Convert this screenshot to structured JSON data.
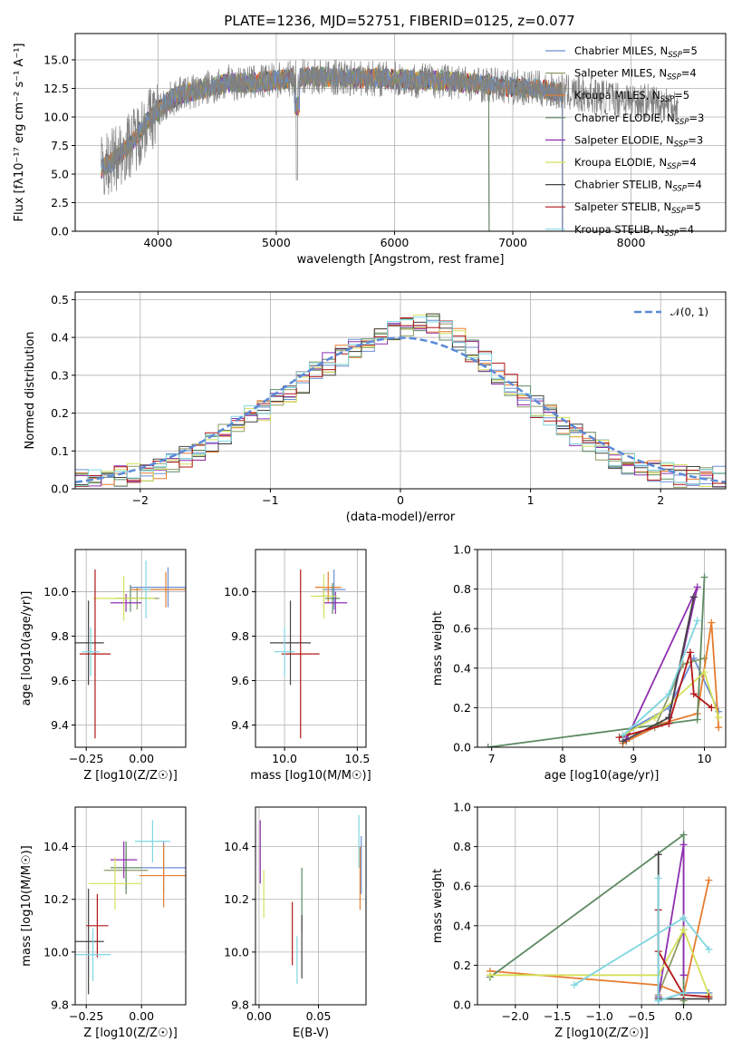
{
  "figure_title": "PLATE=1236, MJD=52751, FIBERID=0125, z=0.077",
  "colors": {
    "Chabrier MILES, N_SSP=5": "#6b8fd6",
    "Salpeter MILES, N_SSP=4": "#8e9b66",
    "Kroupa MILES, N_SSP=5": "#e67c2e",
    "Chabrier ELODIE, N_SSP=3": "#5e8a64",
    "Salpeter ELODIE, N_SSP=3": "#8f2fb0",
    "Kroupa ELODIE, N_SSP=4": "#d4e05a",
    "Chabrier STELIB, N_SSP=4": "#444444",
    "Salpeter STELIB, N_SSP=5": "#b31717",
    "Kroupa STELIB, N_SSP=4": "#7ed6e0"
  },
  "chart_data": [
    {
      "id": "spectrum",
      "type": "line",
      "title": "PLATE=1236, MJD=52751, FIBERID=0125, z=0.077",
      "xlabel": "wavelength [Angstrom, rest frame]",
      "ylabel": "Flux [fλ10⁻¹⁷ erg cm⁻² s⁻¹ A⁻¹]",
      "xlim": [
        3300,
        8800
      ],
      "ylim": [
        0,
        17.3
      ],
      "xticks": [
        4000,
        5000,
        6000,
        7000,
        8000
      ],
      "yticks": [
        0.0,
        2.5,
        5.0,
        7.5,
        10.0,
        12.5,
        15.0
      ],
      "ytick_labels": [
        "0.0",
        "2.5",
        "5.0",
        "7.5",
        "10.0",
        "12.5",
        "15.0"
      ],
      "legend_position": "right",
      "legend": [
        {
          "text": "Chabrier MILES, N",
          "sub": "SSP",
          "tail": "=5",
          "color": "#6b8fd6"
        },
        {
          "text": "Salpeter MILES, N",
          "sub": "SSP",
          "tail": "=4",
          "color": "#8e9b66"
        },
        {
          "text": "Kroupa MILES, N",
          "sub": "SSP",
          "tail": "=5",
          "color": "#e67c2e"
        },
        {
          "text": "Chabrier ELODIE, N",
          "sub": "SSP",
          "tail": "=3",
          "color": "#5e8a64"
        },
        {
          "text": "Salpeter ELODIE, N",
          "sub": "SSP",
          "tail": "=3",
          "color": "#8f2fb0"
        },
        {
          "text": "Kroupa ELODIE, N",
          "sub": "SSP",
          "tail": "=4",
          "color": "#d4e05a"
        },
        {
          "text": "Chabrier STELIB, N",
          "sub": "SSP",
          "tail": "=4",
          "color": "#444444"
        },
        {
          "text": "Salpeter STELIB, N",
          "sub": "SSP",
          "tail": "=5",
          "color": "#b31717"
        },
        {
          "text": "Kroupa STELIB, N",
          "sub": "SSP",
          "tail": "=4",
          "color": "#7ed6e0"
        }
      ],
      "data_envelope": {
        "x": [
          3520,
          3600,
          3700,
          3800,
          3900,
          4000,
          4100,
          4200,
          4400,
          4600,
          4800,
          5000,
          5200,
          5400,
          5600,
          5800,
          6000,
          6200,
          6400,
          6600,
          6800,
          7000,
          7200,
          7400,
          7600,
          7800,
          8000,
          8200,
          8400
        ],
        "y": [
          5.5,
          6.0,
          7.0,
          8.0,
          9.5,
          10.5,
          11.5,
          12.0,
          12.5,
          13.0,
          13.0,
          13.2,
          13.5,
          13.5,
          13.4,
          13.4,
          13.3,
          13.2,
          13.2,
          13.0,
          12.8,
          12.6,
          12.5,
          12.2,
          11.9,
          11.7,
          11.5,
          11.3,
          11.0
        ]
      },
      "model_cutoffs": {
        "Kroupa ELODIE, N_SSP=4": [
          3900,
          6800
        ],
        "Chabrier ELODIE, N_SSP=3": [
          3520,
          6800
        ],
        "Salpeter ELODIE, N_SSP=3": [
          3520,
          6800
        ],
        "Chabrier STELIB, N_SSP=4": [
          3520,
          7420
        ],
        "Salpeter STELIB, N_SSP=5": [
          3520,
          7420
        ],
        "Kroupa STELIB, N_SSP=4": [
          3520,
          7420
        ]
      }
    },
    {
      "id": "residuals",
      "type": "line",
      "xlabel": "(data-model)/error",
      "ylabel": "Normed distribution",
      "xlim": [
        -2.5,
        2.5
      ],
      "ylim": [
        0,
        0.52
      ],
      "xticks": [
        -2,
        -1,
        0,
        1,
        2
      ],
      "xtick_labels": [
        "−2",
        "−1",
        "0",
        "1",
        "2"
      ],
      "yticks": [
        0.0,
        0.1,
        0.2,
        0.3,
        0.4,
        0.5
      ],
      "legend": "𝒩(0, 1)",
      "legend_position": "top-right",
      "bin_width": 0.1,
      "histogram_profile": [
        0.03,
        0.04,
        0.06,
        0.09,
        0.13,
        0.18,
        0.22,
        0.27,
        0.32,
        0.36,
        0.39,
        0.42,
        0.44,
        0.41,
        0.35,
        0.29,
        0.23,
        0.18,
        0.13,
        0.09,
        0.06,
        0.045,
        0.03
      ]
    },
    {
      "id": "age-vs-Z",
      "type": "scatter",
      "xlabel": "Z [log10(Z/Z☉)]",
      "ylabel": "age [log10(age/yr)]",
      "xlim": [
        -0.3,
        0.2
      ],
      "ylim": [
        9.3,
        10.19
      ],
      "xticks": [
        -0.25,
        0.0
      ],
      "xtick_labels": [
        "−0.25",
        "0.00"
      ],
      "yticks": [
        9.4,
        9.6,
        9.8,
        10.0
      ],
      "points": [
        {
          "series": "Chabrier MILES, N_SSP=5",
          "x": 0.12,
          "y": 10.02,
          "xerr": 0.17,
          "yerr": 0.09
        },
        {
          "series": "Salpeter MILES, N_SSP=4",
          "x": -0.02,
          "y": 9.97,
          "xerr": 0.1,
          "yerr": 0.05
        },
        {
          "series": "Kroupa MILES, N_SSP=5",
          "x": 0.11,
          "y": 10.01,
          "xerr": 0.16,
          "yerr": 0.08
        },
        {
          "series": "Chabrier ELODIE, N_SSP=3",
          "x": -0.05,
          "y": 9.97,
          "xerr": 0.06,
          "yerr": 0.06
        },
        {
          "series": "Salpeter ELODIE, N_SSP=3",
          "x": -0.07,
          "y": 9.95,
          "xerr": 0.07,
          "yerr": 0.04
        },
        {
          "series": "Kroupa ELODIE, N_SSP=4",
          "x": -0.08,
          "y": 9.97,
          "xerr": 0.14,
          "yerr": 0.1
        },
        {
          "series": "Chabrier STELIB, N_SSP=4",
          "x": -0.24,
          "y": 9.77,
          "xerr": 0.07,
          "yerr": 0.19
        },
        {
          "series": "Salpeter STELIB, N_SSP=5",
          "x": -0.21,
          "y": 9.72,
          "xerr": 0.07,
          "yerr": 0.38
        },
        {
          "series": "Kroupa STELIB, N_SSP=4",
          "x": -0.23,
          "y": 9.73,
          "xerr": 0.04,
          "yerr": 0.11
        },
        {
          "series": "Kroupa STELIB, N_SSP=4",
          "x": 0.02,
          "y": 10.01,
          "xerr": 0.02,
          "yerr": 0.13
        }
      ]
    },
    {
      "id": "age-vs-mass",
      "type": "scatter",
      "xlabel": "mass [log10(M/M☉)]",
      "ylabel": "",
      "xlim": [
        9.8,
        10.56
      ],
      "ylim": [
        9.3,
        10.19
      ],
      "xticks": [
        10.0,
        10.5
      ],
      "xtick_labels": [
        "10.0",
        "10.5"
      ],
      "yticks": [
        9.4,
        9.6,
        9.8,
        10.0
      ],
      "points": [
        {
          "series": "Chabrier MILES, N_SSP=5",
          "x": 10.34,
          "y": 10.01,
          "xerr": 0.08,
          "yerr": 0.09
        },
        {
          "series": "Salpeter MILES, N_SSP=4",
          "x": 10.27,
          "y": 9.98,
          "xerr": 0.06,
          "yerr": 0.05
        },
        {
          "series": "Kroupa MILES, N_SSP=5",
          "x": 10.3,
          "y": 10.02,
          "xerr": 0.09,
          "yerr": 0.07
        },
        {
          "series": "Chabrier ELODIE, N_SSP=3",
          "x": 10.33,
          "y": 9.97,
          "xerr": 0.05,
          "yerr": 0.07
        },
        {
          "series": "Salpeter ELODIE, N_SSP=3",
          "x": 10.35,
          "y": 9.95,
          "xerr": 0.08,
          "yerr": 0.05
        },
        {
          "series": "Kroupa ELODIE, N_SSP=4",
          "x": 10.27,
          "y": 9.98,
          "xerr": 0.09,
          "yerr": 0.1
        },
        {
          "series": "Chabrier STELIB, N_SSP=4",
          "x": 10.04,
          "y": 9.77,
          "xerr": 0.14,
          "yerr": 0.19
        },
        {
          "series": "Salpeter STELIB, N_SSP=5",
          "x": 10.11,
          "y": 9.72,
          "xerr": 0.13,
          "yerr": 0.38
        },
        {
          "series": "Kroupa STELIB, N_SSP=4",
          "x": 10.0,
          "y": 9.73,
          "xerr": 0.07,
          "yerr": 0.11
        }
      ]
    },
    {
      "id": "weight-vs-age",
      "type": "line",
      "xlabel": "age [log10(age/yr)]",
      "ylabel": "mass weight",
      "xlim": [
        6.8,
        10.3
      ],
      "ylim": [
        0.0,
        1.0
      ],
      "xticks": [
        7,
        8,
        9,
        10
      ],
      "yticks": [
        0.0,
        0.2,
        0.4,
        0.6,
        0.8,
        1.0
      ],
      "series": [
        {
          "name": "Chabrier MILES, N_SSP=5",
          "x": [
            8.85,
            9.0,
            9.5,
            9.85,
            10.2
          ],
          "y": [
            0.05,
            0.1,
            0.2,
            0.45,
            0.18
          ]
        },
        {
          "name": "Salpeter MILES, N_SSP=4",
          "x": [
            8.9,
            9.3,
            9.7,
            10.0
          ],
          "y": [
            0.03,
            0.1,
            0.42,
            0.45
          ]
        },
        {
          "name": "Kroupa MILES, N_SSP=5",
          "x": [
            8.85,
            9.4,
            9.9,
            10.1,
            10.2
          ],
          "y": [
            0.02,
            0.12,
            0.17,
            0.63,
            0.1
          ]
        },
        {
          "name": "Chabrier ELODIE, N_SSP=3",
          "x": [
            6.95,
            9.9,
            10.0
          ],
          "y": [
            0.0,
            0.14,
            0.86
          ]
        },
        {
          "name": "Salpeter ELODIE, N_SSP=3",
          "x": [
            8.9,
            9.9,
            9.5
          ],
          "y": [
            0.04,
            0.81,
            0.15
          ]
        },
        {
          "name": "Kroupa ELODIE, N_SSP=4",
          "x": [
            8.85,
            9.3,
            10.0,
            10.2
          ],
          "y": [
            0.06,
            0.15,
            0.38,
            0.15
          ]
        },
        {
          "name": "Chabrier STELIB, N_SSP=4",
          "x": [
            8.85,
            9.5,
            9.85
          ],
          "y": [
            0.03,
            0.15,
            0.76
          ]
        },
        {
          "name": "Salpeter STELIB, N_SSP=5",
          "x": [
            8.8,
            9.5,
            9.8,
            9.85,
            10.1
          ],
          "y": [
            0.05,
            0.12,
            0.48,
            0.27,
            0.2
          ]
        },
        {
          "name": "Kroupa STELIB, N_SSP=4",
          "x": [
            8.85,
            9.5,
            9.9
          ],
          "y": [
            0.06,
            0.27,
            0.64
          ]
        }
      ]
    },
    {
      "id": "mass-vs-Z",
      "type": "scatter",
      "xlabel": "Z [log10(Z/Z☉)]",
      "ylabel": "mass [log10(M/M☉)]",
      "xlim": [
        -0.3,
        0.2
      ],
      "ylim": [
        9.8,
        10.55
      ],
      "xticks": [
        -0.25,
        0.0
      ],
      "xtick_labels": [
        "−0.25",
        "0.00"
      ],
      "yticks": [
        9.8,
        10.0,
        10.2,
        10.4
      ],
      "points": [
        {
          "series": "Chabrier MILES, N_SSP=5",
          "x": 0.1,
          "y": 10.32,
          "xerr": 0.1,
          "yerr": 0.1
        },
        {
          "series": "Salpeter MILES, N_SSP=4",
          "x": -0.07,
          "y": 10.31,
          "xerr": 0.1,
          "yerr": 0.07
        },
        {
          "series": "Kroupa MILES, N_SSP=5",
          "x": 0.1,
          "y": 10.29,
          "xerr": 0.11,
          "yerr": 0.12
        },
        {
          "series": "Chabrier ELODIE, N_SSP=3",
          "x": -0.07,
          "y": 10.32,
          "xerr": 0.07,
          "yerr": 0.1
        },
        {
          "series": "Salpeter ELODIE, N_SSP=3",
          "x": -0.08,
          "y": 10.35,
          "xerr": 0.06,
          "yerr": 0.07
        },
        {
          "series": "Kroupa ELODIE, N_SSP=4",
          "x": -0.12,
          "y": 10.26,
          "xerr": 0.12,
          "yerr": 0.1
        },
        {
          "series": "Chabrier STELIB, N_SSP=4",
          "x": -0.24,
          "y": 10.04,
          "xerr": 0.07,
          "yerr": 0.2
        },
        {
          "series": "Salpeter STELIB, N_SSP=5",
          "x": -0.2,
          "y": 10.1,
          "xerr": 0.05,
          "yerr": 0.12
        },
        {
          "series": "Kroupa STELIB, N_SSP=4",
          "x": -0.22,
          "y": 9.99,
          "xerr": 0.08,
          "yerr": 0.1
        },
        {
          "series": "Kroupa STELIB, N_SSP=4",
          "x": 0.05,
          "y": 10.42,
          "xerr": 0.08,
          "yerr": 0.08
        }
      ]
    },
    {
      "id": "mass-vs-EBV",
      "type": "scatter",
      "xlabel": "E(B-V)",
      "ylabel": "",
      "xlim": [
        -0.003,
        0.09
      ],
      "ylim": [
        9.8,
        10.55
      ],
      "xticks": [
        0.0,
        0.05
      ],
      "xtick_labels": [
        "0.00",
        "0.05"
      ],
      "yticks": [
        9.8,
        10.0,
        10.2,
        10.4
      ],
      "points": [
        {
          "series": "Chabrier MILES, N_SSP=5",
          "x": 0.086,
          "y": 10.33,
          "yerr": 0.11
        },
        {
          "series": "Salpeter ELODIE, N_SSP=3",
          "x": 0.001,
          "y": 10.38,
          "yerr": 0.12
        },
        {
          "series": "Kroupa ELODIE, N_SSP=4",
          "x": 0.004,
          "y": 10.22,
          "yerr": 0.09
        },
        {
          "series": "Chabrier ELODIE, N_SSP=3",
          "x": 0.036,
          "y": 10.2,
          "yerr": 0.12
        },
        {
          "series": "Kroupa MILES, N_SSP=5",
          "x": 0.085,
          "y": 10.28,
          "yerr": 0.12
        },
        {
          "series": "Kroupa STELIB, N_SSP=4",
          "x": 0.032,
          "y": 9.97,
          "yerr": 0.09
        },
        {
          "series": "Chabrier STELIB, N_SSP=4",
          "x": 0.036,
          "y": 10.02,
          "yerr": 0.12
        },
        {
          "series": "Salpeter STELIB, N_SSP=5",
          "x": 0.028,
          "y": 10.07,
          "yerr": 0.12
        },
        {
          "series": "Kroupa STELIB, N_SSP=4",
          "x": 0.084,
          "y": 10.42,
          "yerr": 0.1
        }
      ]
    },
    {
      "id": "weight-vs-Z",
      "type": "line",
      "xlabel": "Z [log10(Z/Z☉)]",
      "ylabel": "mass weight",
      "xlim": [
        -2.45,
        0.5
      ],
      "ylim": [
        0.0,
        1.0
      ],
      "xticks": [
        -2.0,
        -1.5,
        -1.0,
        -0.5,
        0.0
      ],
      "xtick_labels": [
        "−2.0",
        "−1.5",
        "−1.0",
        "−0.5",
        "0.0"
      ],
      "yticks": [
        0.0,
        0.2,
        0.4,
        0.6,
        0.8,
        1.0
      ],
      "series": [
        {
          "name": "Chabrier MILES, N_SSP=5",
          "x": [
            -0.3,
            -0.3,
            0.0,
            0.3
          ],
          "y": [
            0.1,
            0.02,
            0.06,
            0.06
          ]
        },
        {
          "name": "Salpeter MILES, N_SSP=4",
          "x": [
            -0.3,
            0.0,
            0.0
          ],
          "y": [
            0.05,
            0.38,
            0.02
          ]
        },
        {
          "name": "Kroupa MILES, N_SSP=5",
          "x": [
            -2.3,
            -0.3,
            0.0,
            0.3
          ],
          "y": [
            0.17,
            0.1,
            0.05,
            0.63
          ]
        },
        {
          "name": "Chabrier ELODIE, N_SSP=3",
          "x": [
            -2.3,
            0.0,
            0.0
          ],
          "y": [
            0.14,
            0.86,
            0.0
          ]
        },
        {
          "name": "Salpeter ELODIE, N_SSP=3",
          "x": [
            -0.3,
            0.0,
            0.0
          ],
          "y": [
            0.04,
            0.81,
            0.15
          ]
        },
        {
          "name": "Kroupa ELODIE, N_SSP=4",
          "x": [
            -2.3,
            -0.3,
            0.0,
            0.3
          ],
          "y": [
            0.15,
            0.15,
            0.38,
            0.05
          ]
        },
        {
          "name": "Chabrier STELIB, N_SSP=4",
          "x": [
            -0.3,
            -0.3,
            0.3
          ],
          "y": [
            0.76,
            0.03,
            0.03
          ]
        },
        {
          "name": "Salpeter STELIB, N_SSP=5",
          "x": [
            -0.3,
            -0.3,
            0.0,
            0.3
          ],
          "y": [
            0.48,
            0.27,
            0.05,
            0.04
          ]
        },
        {
          "name": "Kroupa STELIB, N_SSP=4",
          "x": [
            -0.3,
            -0.3,
            0.0
          ],
          "y": [
            0.64,
            0.02,
            0.06
          ]
        },
        {
          "name": "Kroupa STELIB, N_SSP=4",
          "x": [
            -1.3,
            0.0,
            0.3
          ],
          "y": [
            0.1,
            0.44,
            0.28
          ]
        }
      ]
    }
  ]
}
